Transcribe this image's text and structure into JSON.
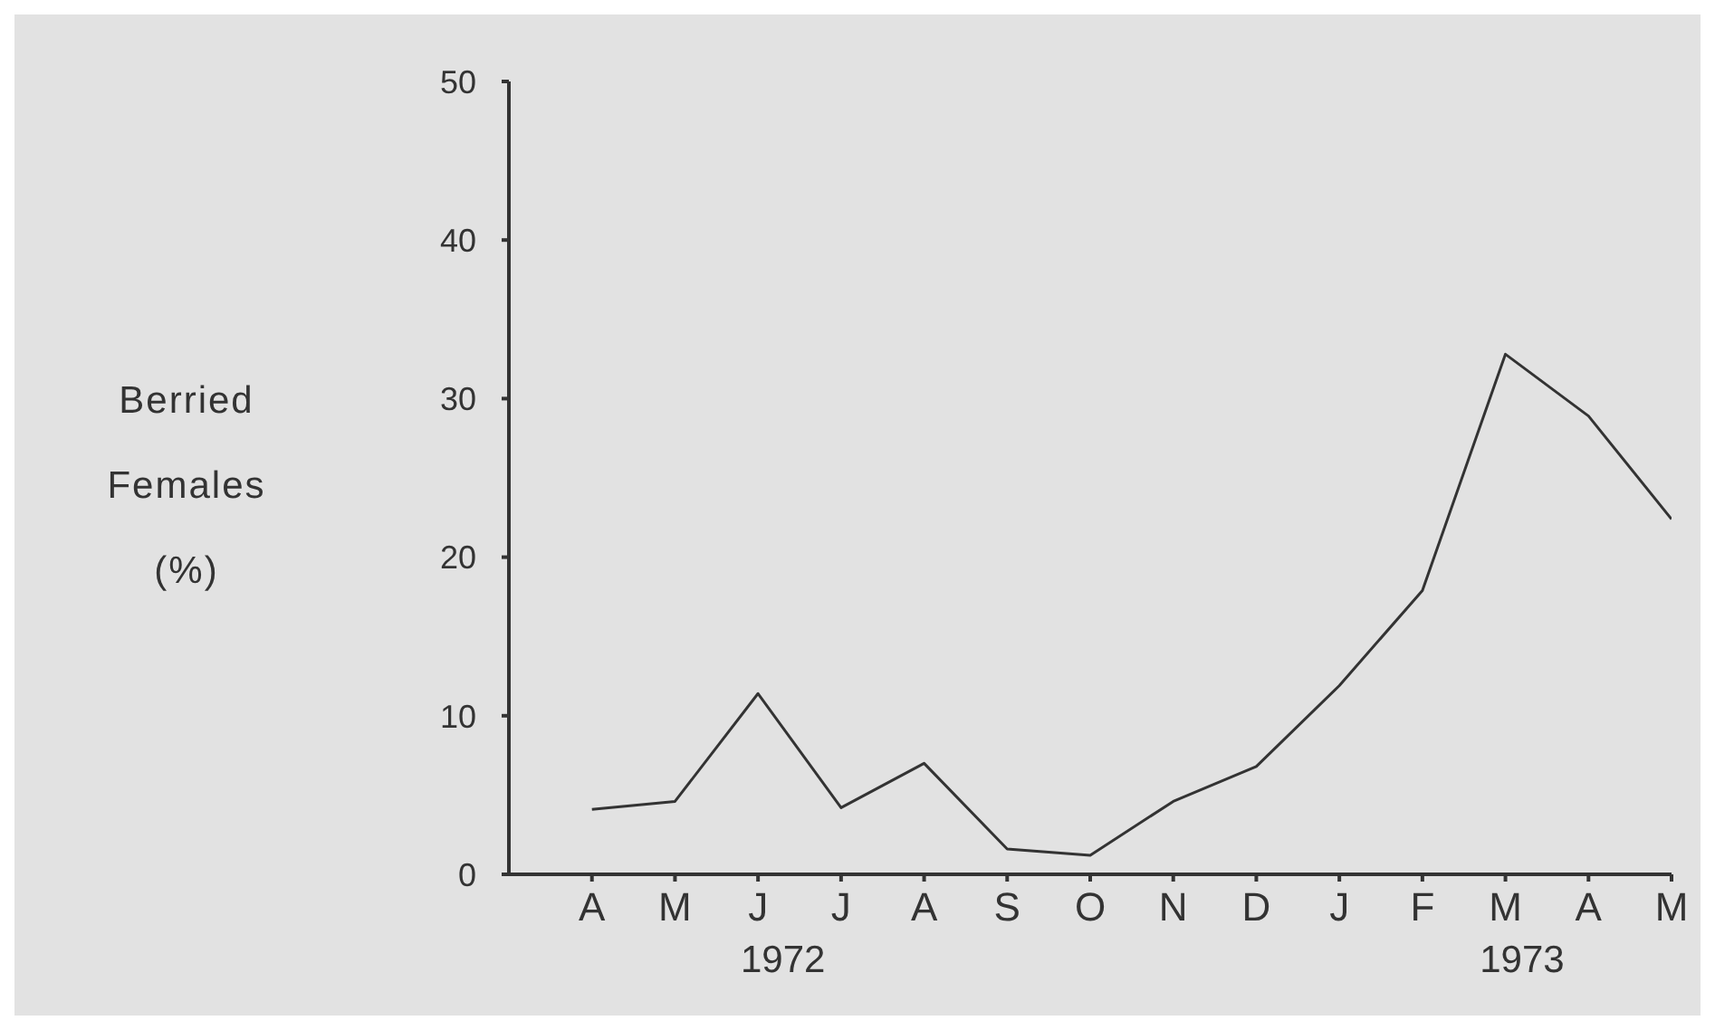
{
  "chart_data": {
    "type": "line",
    "ylabel": "Berried Females (%)",
    "categories": [
      "A",
      "M",
      "J",
      "J",
      "A",
      "S",
      "O",
      "N",
      "D",
      "J",
      "F",
      "M",
      "A",
      "M"
    ],
    "series": [
      {
        "color": "#333333",
        "values": [
          4.1,
          4.6,
          11.4,
          4.2,
          7.0,
          1.6,
          1.2,
          4.6,
          6.8,
          11.9,
          17.9,
          32.8,
          28.9,
          22.4
        ]
      }
    ],
    "ylim": [
      0,
      50
    ],
    "yticks": [
      0,
      10,
      20,
      30,
      40,
      50
    ],
    "grid": false,
    "marker": "none",
    "line_style": "solid",
    "annotations": [
      "1972",
      "1973"
    ]
  }
}
